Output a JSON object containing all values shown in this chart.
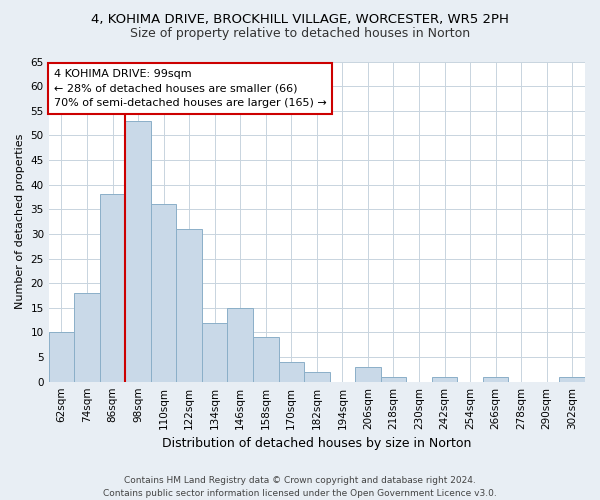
{
  "title1": "4, KOHIMA DRIVE, BROCKHILL VILLAGE, WORCESTER, WR5 2PH",
  "title2": "Size of property relative to detached houses in Norton",
  "xlabel": "Distribution of detached houses by size in Norton",
  "ylabel": "Number of detached properties",
  "bar_labels": [
    "62sqm",
    "74sqm",
    "86sqm",
    "98sqm",
    "110sqm",
    "122sqm",
    "134sqm",
    "146sqm",
    "158sqm",
    "170sqm",
    "182sqm",
    "194sqm",
    "206sqm",
    "218sqm",
    "230sqm",
    "242sqm",
    "254sqm",
    "266sqm",
    "278sqm",
    "290sqm",
    "302sqm"
  ],
  "bar_values": [
    10,
    18,
    38,
    53,
    36,
    31,
    12,
    15,
    9,
    4,
    2,
    0,
    3,
    1,
    0,
    1,
    0,
    1,
    0,
    0,
    1
  ],
  "bar_color": "#c9d9e8",
  "bar_edgecolor": "#8bafc8",
  "annotation_text": "4 KOHIMA DRIVE: 99sqm\n← 28% of detached houses are smaller (66)\n70% of semi-detached houses are larger (165) →",
  "box_facecolor": "#ffffff",
  "box_edgecolor": "#cc0000",
  "line_color": "#cc0000",
  "ylim": [
    0,
    65
  ],
  "yticks": [
    0,
    5,
    10,
    15,
    20,
    25,
    30,
    35,
    40,
    45,
    50,
    55,
    60,
    65
  ],
  "footer": "Contains HM Land Registry data © Crown copyright and database right 2024.\nContains public sector information licensed under the Open Government Licence v3.0.",
  "background_color": "#e8eef4",
  "plot_background": "#ffffff",
  "grid_color": "#c8d4de",
  "title1_fontsize": 9.5,
  "title2_fontsize": 9,
  "ylabel_fontsize": 8,
  "xlabel_fontsize": 9,
  "tick_fontsize": 7.5,
  "footer_fontsize": 6.5,
  "annot_fontsize": 8
}
